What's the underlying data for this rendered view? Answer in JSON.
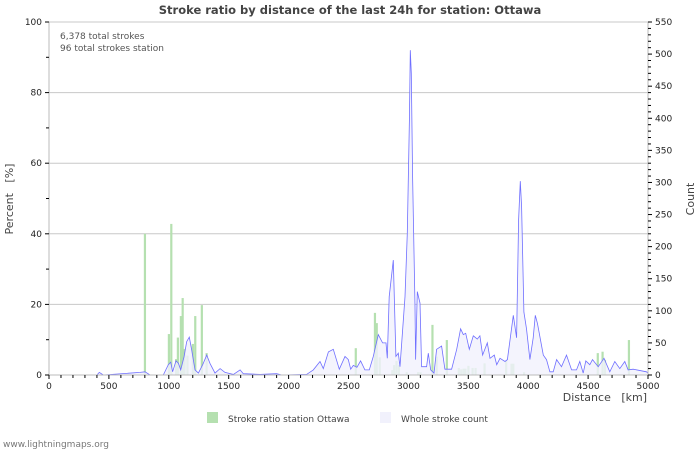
{
  "chart_data": {
    "type": "bar+area",
    "title": "Stroke ratio by distance of the last 24h for station: Ottawa",
    "annotations": [
      "6,378 total strokes",
      "96 total strokes station"
    ],
    "xlabel": "Distance   [km]",
    "ylabel_left": "Percent   [%]",
    "ylabel_right": "Count",
    "xlim": [
      0,
      5000
    ],
    "ylim_left": [
      0,
      100
    ],
    "ylim_right": [
      0,
      550
    ],
    "x_ticks": [
      "0",
      "500",
      "1000",
      "1500",
      "2000",
      "2500",
      "3000",
      "3500",
      "4000",
      "4500",
      "5000"
    ],
    "y_left_ticks": [
      "0",
      "20",
      "40",
      "60",
      "80",
      "100"
    ],
    "y_right_ticks": [
      "0",
      "50",
      "100",
      "150",
      "200",
      "250",
      "300",
      "350",
      "400",
      "450",
      "500",
      "550"
    ],
    "grid": true,
    "legend_position": "bottom",
    "series": [
      {
        "name": "Stroke ratio station Ottawa",
        "type": "bar",
        "axis": "left",
        "color": "#b5e0b0",
        "points": [
          [
            800,
            40
          ],
          [
            1000,
            11.6
          ],
          [
            1020,
            42.8
          ],
          [
            1060,
            4.5
          ],
          [
            1075,
            10.6
          ],
          [
            1100,
            16.7
          ],
          [
            1115,
            21.8
          ],
          [
            1130,
            7.4
          ],
          [
            1155,
            5.5
          ],
          [
            1200,
            8.8
          ],
          [
            1220,
            16.7
          ],
          [
            1275,
            19.8
          ],
          [
            1315,
            6.2
          ],
          [
            2560,
            7.6
          ],
          [
            2720,
            17.6
          ],
          [
            2735,
            14.7
          ],
          [
            2760,
            5
          ],
          [
            2865,
            1.4
          ],
          [
            2880,
            2.8
          ],
          [
            2900,
            4
          ],
          [
            2920,
            2.8
          ],
          [
            2985,
            0.8
          ],
          [
            3080,
            0.8
          ],
          [
            3100,
            0.8
          ],
          [
            3200,
            14.2
          ],
          [
            3235,
            5.2
          ],
          [
            3320,
            9.9
          ],
          [
            3420,
            2
          ],
          [
            3440,
            1.6
          ],
          [
            3460,
            1.8
          ],
          [
            3475,
            1.8
          ],
          [
            3500,
            2.6
          ],
          [
            3535,
            2
          ],
          [
            3560,
            2
          ],
          [
            3635,
            3.3
          ],
          [
            3815,
            4
          ],
          [
            3860,
            3.2
          ],
          [
            3875,
            3.2
          ],
          [
            3965,
            0.8
          ],
          [
            4580,
            6.2
          ],
          [
            4620,
            6.6
          ],
          [
            4640,
            4.3
          ],
          [
            4840,
            9.9
          ]
        ]
      },
      {
        "name": "Whole stroke count",
        "type": "area",
        "axis": "right",
        "color": "#6f6fff",
        "fill": "#f1f1fc",
        "points": [
          [
            0,
            0
          ],
          [
            400,
            0
          ],
          [
            420,
            4
          ],
          [
            453,
            0
          ],
          [
            760,
            4
          ],
          [
            801,
            5
          ],
          [
            843,
            0
          ],
          [
            954,
            0
          ],
          [
            996,
            16
          ],
          [
            1016,
            20
          ],
          [
            1032,
            5
          ],
          [
            1060,
            22
          ],
          [
            1080,
            18
          ],
          [
            1099,
            8
          ],
          [
            1127,
            28
          ],
          [
            1149,
            52
          ],
          [
            1171,
            59
          ],
          [
            1191,
            39
          ],
          [
            1219,
            8
          ],
          [
            1247,
            3
          ],
          [
            1283,
            16
          ],
          [
            1316,
            31
          ],
          [
            1344,
            18
          ],
          [
            1386,
            3
          ],
          [
            1428,
            10
          ],
          [
            1469,
            4
          ],
          [
            1539,
            1
          ],
          [
            1595,
            8
          ],
          [
            1622,
            2
          ],
          [
            1761,
            1
          ],
          [
            1900,
            2
          ],
          [
            1942,
            0
          ],
          [
            2150,
            1
          ],
          [
            2206,
            8
          ],
          [
            2262,
            21
          ],
          [
            2290,
            10
          ],
          [
            2332,
            36
          ],
          [
            2373,
            40
          ],
          [
            2423,
            9
          ],
          [
            2471,
            29
          ],
          [
            2498,
            24
          ],
          [
            2518,
            9
          ],
          [
            2540,
            15
          ],
          [
            2570,
            12
          ],
          [
            2601,
            22
          ],
          [
            2637,
            8
          ],
          [
            2674,
            8
          ],
          [
            2707,
            29
          ],
          [
            2749,
            63
          ],
          [
            2785,
            50
          ],
          [
            2813,
            50
          ],
          [
            2824,
            26
          ],
          [
            2840,
            122
          ],
          [
            2874,
            179
          ],
          [
            2896,
            29
          ],
          [
            2916,
            34
          ],
          [
            2930,
            13
          ],
          [
            2972,
            122
          ],
          [
            2991,
            221
          ],
          [
            3008,
            397
          ],
          [
            3016,
            506
          ],
          [
            3024,
            470
          ],
          [
            3035,
            309
          ],
          [
            3055,
            107
          ],
          [
            3060,
            24
          ],
          [
            3074,
            130
          ],
          [
            3097,
            112
          ],
          [
            3110,
            13
          ],
          [
            3152,
            13
          ],
          [
            3166,
            34
          ],
          [
            3186,
            8
          ],
          [
            3214,
            3
          ],
          [
            3235,
            40
          ],
          [
            3277,
            45
          ],
          [
            3305,
            9
          ],
          [
            3361,
            9
          ],
          [
            3403,
            40
          ],
          [
            3436,
            72
          ],
          [
            3458,
            63
          ],
          [
            3478,
            65
          ],
          [
            3508,
            40
          ],
          [
            3542,
            61
          ],
          [
            3575,
            56
          ],
          [
            3597,
            61
          ],
          [
            3619,
            31
          ],
          [
            3659,
            50
          ],
          [
            3681,
            26
          ],
          [
            3717,
            31
          ],
          [
            3737,
            16
          ],
          [
            3765,
            26
          ],
          [
            3806,
            21
          ],
          [
            3826,
            24
          ],
          [
            3876,
            93
          ],
          [
            3903,
            58
          ],
          [
            3920,
            242
          ],
          [
            3934,
            302
          ],
          [
            3945,
            262
          ],
          [
            3964,
            98
          ],
          [
            3986,
            72
          ],
          [
            4014,
            24
          ],
          [
            4042,
            58
          ],
          [
            4059,
            93
          ],
          [
            4078,
            80
          ],
          [
            4126,
            31
          ],
          [
            4153,
            24
          ],
          [
            4181,
            5
          ],
          [
            4209,
            5
          ],
          [
            4237,
            24
          ],
          [
            4278,
            13
          ],
          [
            4320,
            31
          ],
          [
            4362,
            8
          ],
          [
            4403,
            8
          ],
          [
            4431,
            21
          ],
          [
            4459,
            3
          ],
          [
            4481,
            22
          ],
          [
            4514,
            16
          ],
          [
            4537,
            24
          ],
          [
            4584,
            13
          ],
          [
            4633,
            26
          ],
          [
            4681,
            5
          ],
          [
            4723,
            21
          ],
          [
            4765,
            10
          ],
          [
            4806,
            21
          ],
          [
            4834,
            8
          ],
          [
            4876,
            9
          ],
          [
            4987,
            5
          ],
          [
            5000,
            3
          ]
        ]
      }
    ]
  },
  "footer": {
    "website": "www.lightningmaps.org"
  }
}
